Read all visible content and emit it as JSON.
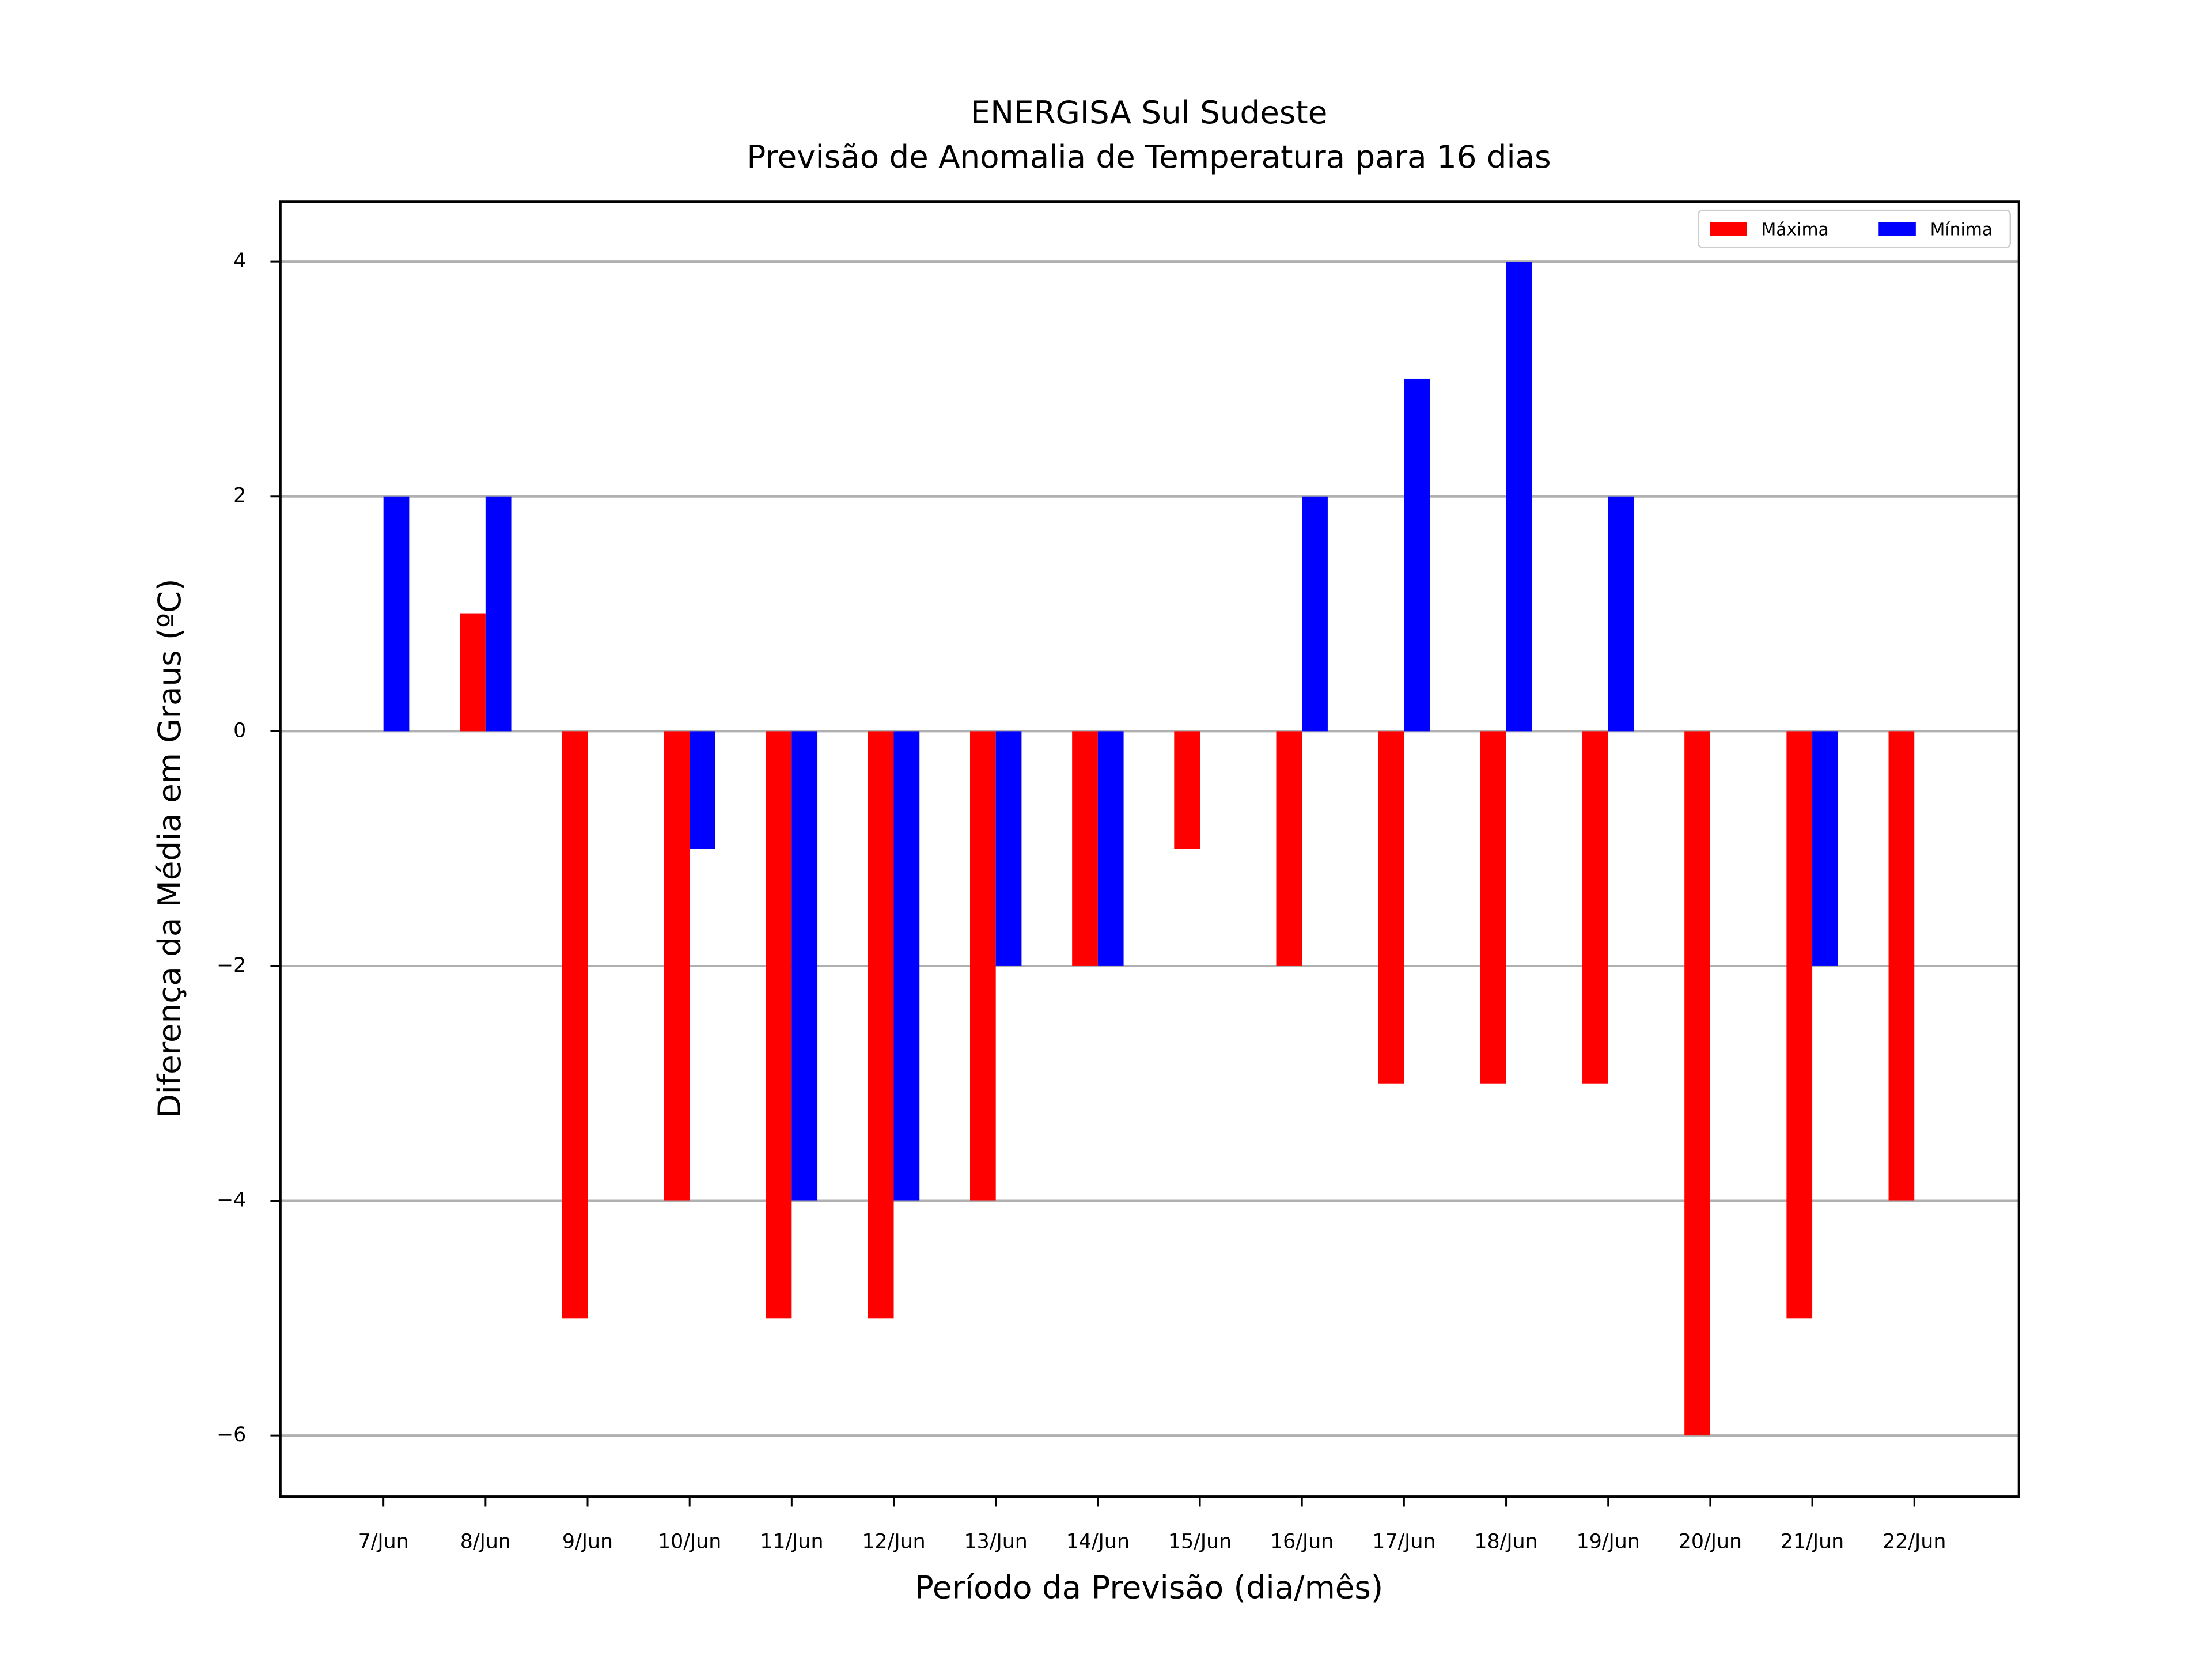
{
  "chart_data": {
    "type": "bar",
    "title": "ENERGISA Sul Sudeste",
    "subtitle": "Previsão de Anomalia de Temperatura para 16 dias",
    "x_label": "Período da Previsão (dia/mês)",
    "y_label": "Diferença da Média em Graus (ºC)",
    "categories": [
      "7/Jun",
      "8/Jun",
      "9/Jun",
      "10/Jun",
      "11/Jun",
      "12/Jun",
      "13/Jun",
      "14/Jun",
      "15/Jun",
      "16/Jun",
      "17/Jun",
      "18/Jun",
      "19/Jun",
      "20/Jun",
      "21/Jun",
      "22/Jun"
    ],
    "series": [
      {
        "name": "Máxima",
        "color": "#ff0000",
        "values": [
          0,
          1,
          -5,
          -4,
          -5,
          -5,
          -4,
          -2,
          -1,
          -2,
          -3,
          -3,
          -3,
          -6,
          -5,
          -4
        ]
      },
      {
        "name": "Mínima",
        "color": "#0000ff",
        "values": [
          2,
          2,
          0,
          -1,
          -4,
          -4,
          -2,
          -2,
          0,
          2,
          3,
          4,
          2,
          0,
          -2,
          0
        ]
      }
    ],
    "ylim": [
      -6.52,
      4.51
    ],
    "yticks": [
      {
        "value": -6,
        "label": "−6"
      },
      {
        "value": -4,
        "label": "−4"
      },
      {
        "value": -2,
        "label": "−2"
      },
      0,
      2,
      4
    ],
    "grid": true,
    "legend": "upper right"
  }
}
